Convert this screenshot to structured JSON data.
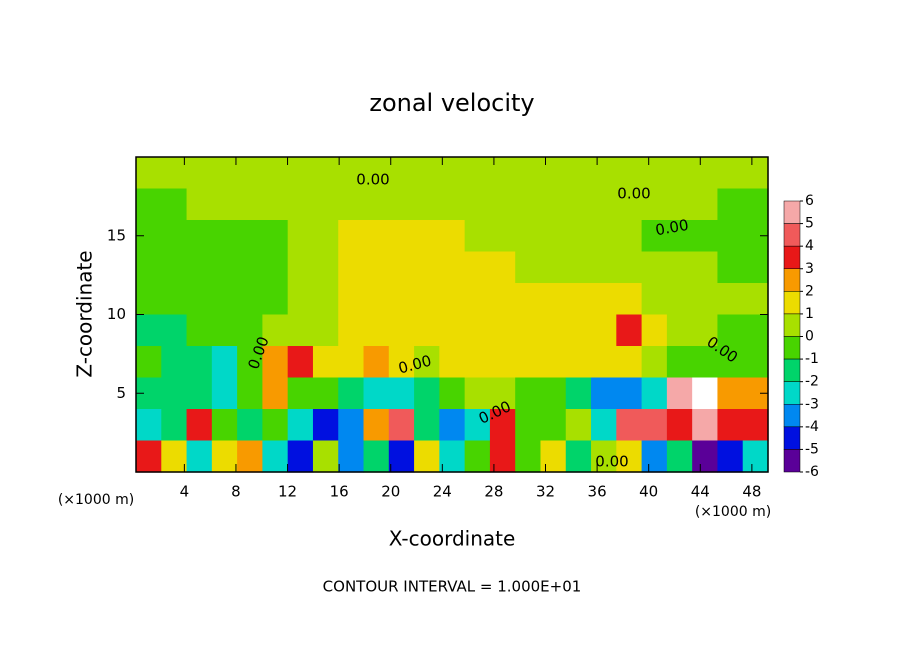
{
  "chart_data": {
    "type": "heatmap",
    "title": "zonal velocity",
    "x_label": "X-coordinate",
    "y_label": "Z-coordinate",
    "x_unit_labels": [
      "(×1000 m)",
      "(×1000 m)"
    ],
    "footer": "CONTOUR INTERVAL = 1.000E+01",
    "contour_labels": [
      "0.00",
      "0.00",
      "0.00",
      "0.00",
      "0.00",
      "0.00",
      "0.00",
      "0.00"
    ],
    "xlim": [
      0.25,
      49.25
    ],
    "ylim": [
      0,
      20
    ],
    "xticks": [
      4,
      8,
      12,
      16,
      20,
      24,
      28,
      32,
      36,
      40,
      44,
      48
    ],
    "yticks": [
      5,
      10,
      15
    ],
    "z": [
      [
        0.5,
        0.5,
        0.5,
        0.5,
        0.5,
        0.5,
        0.5,
        0.5,
        0.5,
        0.5,
        0.5,
        0,
        0.5,
        0.5,
        0.5,
        0.5,
        0.5,
        0.5,
        0.5,
        0.5,
        0.5,
        0,
        0,
        0.5,
        0.5
      ],
      [
        -0.5,
        -0.5,
        0,
        0,
        0,
        0.5,
        0.5,
        0.5,
        0.5,
        0.5,
        0.5,
        0.5,
        0.5,
        0.5,
        0.5,
        0.5,
        0.5,
        0.5,
        0.5,
        0.5,
        0,
        0,
        0,
        -0.5,
        -0.5
      ],
      [
        -1,
        -1,
        -1,
        -1,
        -1,
        -0.5,
        0,
        0.5,
        1,
        1,
        1,
        1,
        1,
        0.5,
        0.5,
        0.5,
        0.5,
        0.5,
        0.5,
        0,
        -0.5,
        -0.5,
        -1,
        -1,
        -1
      ],
      [
        -1,
        -1,
        -1,
        -1,
        -1,
        -1,
        0,
        0.5,
        1,
        1,
        1,
        1,
        1,
        1,
        1,
        0.5,
        0.5,
        0.5,
        0.5,
        0.5,
        0,
        0,
        0,
        -0.5,
        -0.5
      ],
      [
        -1,
        -1,
        -1,
        -1,
        -0.5,
        -0.5,
        0,
        0.5,
        1,
        1,
        1,
        1,
        1,
        1,
        1,
        1,
        1,
        1,
        1,
        1.5,
        0.5,
        0,
        0,
        0,
        0
      ],
      [
        -1.5,
        -1.5,
        -1,
        -1,
        -1,
        0.5,
        0,
        0.5,
        1,
        1,
        1.5,
        1,
        1,
        1.5,
        1.5,
        1,
        1,
        1,
        1.5,
        3,
        1,
        0.5,
        0,
        -0.5,
        -1
      ],
      [
        -1,
        -1.5,
        -2,
        -3,
        -1,
        2,
        3,
        1,
        1,
        2,
        1,
        0.5,
        1,
        1.5,
        1,
        1,
        1,
        1.5,
        1,
        1,
        0,
        -1,
        -1,
        -1,
        -1
      ],
      [
        -2,
        -2,
        -1.5,
        -3,
        -1,
        2,
        -1,
        -1,
        -2,
        -3,
        -3,
        -2,
        -1,
        0,
        0,
        -1,
        -1,
        -2,
        -4,
        -4,
        -3,
        5,
        6.5,
        2,
        2
      ],
      [
        -3,
        -2,
        3,
        -1,
        -2,
        -1,
        -3,
        -5,
        -4,
        2,
        4,
        -2,
        -4,
        -3,
        3,
        -1,
        -1,
        0,
        -3,
        4,
        4,
        3,
        5,
        3,
        3
      ],
      [
        3,
        1,
        -3,
        1,
        2,
        -3,
        -5,
        0,
        -4,
        -2,
        -5,
        1,
        -3,
        -1,
        3,
        -1,
        1,
        -2,
        0,
        1,
        -4,
        -2,
        -6,
        -5,
        -3
      ]
    ],
    "colorbar": {
      "ticks": [
        6,
        5,
        4,
        3,
        2,
        1,
        0,
        -1,
        -2,
        -3,
        -4,
        -5,
        -6
      ],
      "colors": [
        "#f5a8a8",
        "#f05a5a",
        "#e81818",
        "#f89a00",
        "#ecdc00",
        "#a8e000",
        "#48d400",
        "#00d46a",
        "#00d8c8",
        "#0088f0",
        "#0010e0",
        "#5a0098"
      ]
    }
  }
}
